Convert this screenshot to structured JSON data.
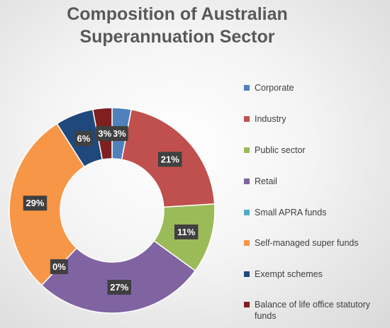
{
  "chart_data": {
    "type": "pie",
    "title": "Composition of Australian Superannuation Sector",
    "title_lines": [
      "Composition of Australian",
      "Superannuation Sector"
    ],
    "donut": true,
    "legend_position": "right",
    "series": [
      {
        "name": "",
        "categories": [
          "Corporate",
          "Industry",
          "Public sector",
          "Retail",
          "Small APRA funds",
          "Self-managed super funds",
          "Exempt schemes",
          "Balance of life office statutory funds"
        ],
        "values": [
          3,
          21,
          11,
          27,
          0,
          29,
          6,
          3
        ],
        "data_labels": [
          "3%",
          "21%",
          "11%",
          "27%",
          "0%",
          "29%",
          "6%",
          "3%"
        ],
        "colors": [
          "#4f81bd",
          "#c0504d",
          "#9bbb59",
          "#8064a2",
          "#4bacc6",
          "#f79646",
          "#1f497d",
          "#7f1f1f"
        ]
      }
    ]
  }
}
